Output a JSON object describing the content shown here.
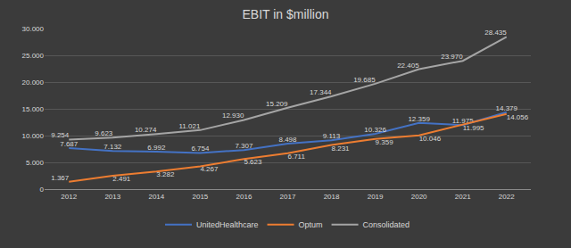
{
  "chart_data": {
    "type": "line",
    "title": "EBIT in $million",
    "categories": [
      "2012",
      "2013",
      "2014",
      "2015",
      "2016",
      "2017",
      "2018",
      "2019",
      "2020",
      "2021",
      "2022"
    ],
    "series": [
      {
        "name": "UnitedHealthcare",
        "color": "#4472c4",
        "values": [
          7687,
          7132,
          6992,
          6754,
          7307,
          8498,
          9113,
          10326,
          12359,
          11975,
          14379
        ],
        "value_labels": [
          "7.687",
          "7.132",
          "6.992",
          "6.754",
          "7.307",
          "8.498",
          "9.113",
          "10.326",
          "12.359",
          "11.975",
          "14.379"
        ]
      },
      {
        "name": "Optum",
        "color": "#ed7d31",
        "values": [
          1367,
          2491,
          3282,
          4267,
          5623,
          6711,
          8231,
          9359,
          10046,
          11995,
          14056
        ],
        "value_labels": [
          "1.367",
          "2.491",
          "3.282",
          "4.267",
          "5.623",
          "6.711",
          "8.231",
          "9.359",
          "10.046",
          "11.995",
          "14.056"
        ]
      },
      {
        "name": "Consolidated",
        "color": "#a5a5a5",
        "values": [
          9254,
          9623,
          10274,
          11021,
          12930,
          15209,
          17344,
          19685,
          22405,
          23970,
          28435
        ],
        "value_labels": [
          "9.254",
          "9.623",
          "10.274",
          "11.021",
          "12.930",
          "15.209",
          "17.344",
          "19.685",
          "22.405",
          "23.970",
          "28.435"
        ]
      }
    ],
    "ylim": [
      0,
      30000
    ],
    "yticks": [
      0,
      {
        "value": 5000,
        "label": "5.000"
      },
      {
        "value": 10000,
        "label": "10.000"
      },
      {
        "value": 15000,
        "label": "15.000"
      },
      {
        "value": 20000,
        "label": "20.000"
      },
      {
        "value": 25000,
        "label": "25.000"
      },
      {
        "value": 30000,
        "label": "30.000"
      }
    ],
    "grid": true,
    "legend": "bottom",
    "data_labels": true
  }
}
